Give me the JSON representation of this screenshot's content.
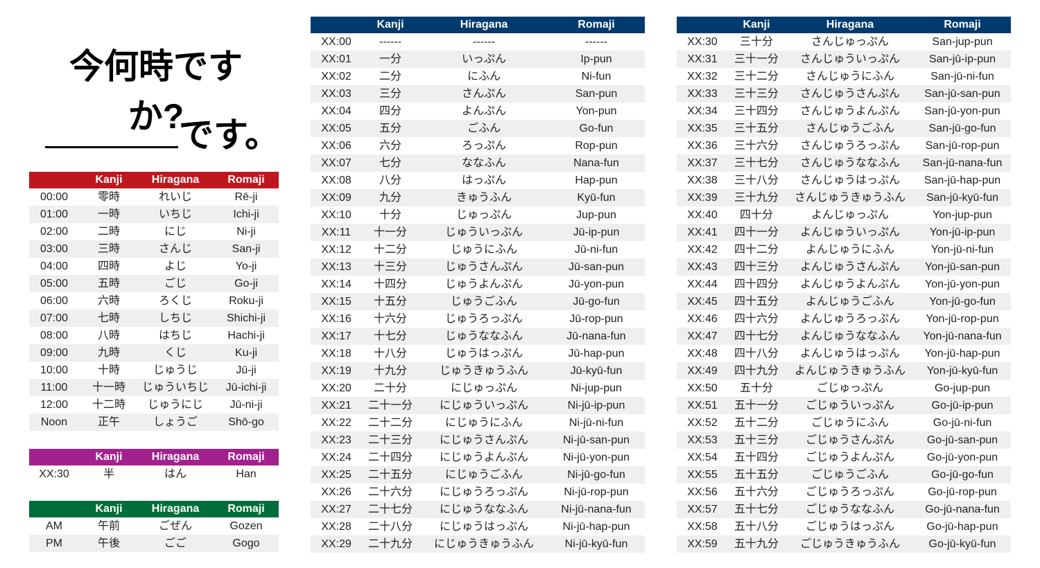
{
  "title": "今何時ですか?",
  "subtitle": "です。",
  "tables": [
    {
      "color": "#c0171f",
      "header": [
        "Kanji",
        "Hiragana",
        "Romaji"
      ],
      "rows": [
        [
          "00:00",
          "零時",
          "れいじ",
          "Rē-ji"
        ],
        [
          "01:00",
          "一時",
          "いちじ",
          "Ichi-ji"
        ],
        [
          "02:00",
          "二時",
          "にじ",
          "Ni-ji"
        ],
        [
          "03:00",
          "三時",
          "さんじ",
          "San-ji"
        ],
        [
          "04:00",
          "四時",
          "よじ",
          "Yo-ji"
        ],
        [
          "05:00",
          "五時",
          "ごじ",
          "Go-ji"
        ],
        [
          "06:00",
          "六時",
          "ろくじ",
          "Roku-ji"
        ],
        [
          "07:00",
          "七時",
          "しちじ",
          "Shichi-ji"
        ],
        [
          "08:00",
          "八時",
          "はちじ",
          "Hachi-ji"
        ],
        [
          "09:00",
          "九時",
          "くじ",
          "Ku-ji"
        ],
        [
          "10:00",
          "十時",
          "じゅうじ",
          "Jū-ji"
        ],
        [
          "11:00",
          "十一時",
          "じゅういちじ",
          "Jū-ichi-ji"
        ],
        [
          "12:00",
          "十二時",
          "じゅうにじ",
          "Jū-ni-ji"
        ],
        [
          "Noon",
          "正午",
          "しょうご",
          "Shō-go"
        ]
      ]
    },
    {
      "color": "#a3218e",
      "header": [
        "Kanji",
        "Hiragana",
        "Romaji"
      ],
      "rows": [
        [
          "XX:30",
          "半",
          "はん",
          "Han"
        ]
      ]
    },
    {
      "color": "#006e3b",
      "header": [
        "Kanji",
        "Hiragana",
        "Romaji"
      ],
      "rows": [
        [
          "AM",
          "午前",
          "ごぜん",
          "Gozen"
        ],
        [
          "PM",
          "午後",
          "ごご",
          "Gogo"
        ]
      ]
    },
    {
      "color": "#003b70",
      "header": [
        "Kanji",
        "Hiragana",
        "Romaji"
      ],
      "rows": [
        [
          "XX:00",
          "------",
          "------",
          "------"
        ],
        [
          "XX:01",
          "一分",
          "いっぷん",
          "Ip-pun"
        ],
        [
          "XX:02",
          "二分",
          "にふん",
          "Ni-fun"
        ],
        [
          "XX:03",
          "三分",
          "さんぷん",
          "San-pun"
        ],
        [
          "XX:04",
          "四分",
          "よんぷん",
          "Yon-pun"
        ],
        [
          "XX:05",
          "五分",
          "ごふん",
          "Go-fun"
        ],
        [
          "XX:06",
          "六分",
          "ろっぷん",
          "Rop-pun"
        ],
        [
          "XX:07",
          "七分",
          "ななふん",
          "Nana-fun"
        ],
        [
          "XX:08",
          "八分",
          "はっぷん",
          "Hap-pun"
        ],
        [
          "XX:09",
          "九分",
          "きゅうふん",
          "Kyū-fun"
        ],
        [
          "XX:10",
          "十分",
          "じゅっぷん",
          "Jup-pun"
        ],
        [
          "XX:11",
          "十一分",
          "じゅういっぷん",
          "Jū-ip-pun"
        ],
        [
          "XX:12",
          "十二分",
          "じゅうにふん",
          "Jū-ni-fun"
        ],
        [
          "XX:13",
          "十三分",
          "じゅうさんぷん",
          "Jū-san-pun"
        ],
        [
          "XX:14",
          "十四分",
          "じゅうよんぷん",
          "Jū-yon-pun"
        ],
        [
          "XX:15",
          "十五分",
          "じゅうごふん",
          "Jū-go-fun"
        ],
        [
          "XX:16",
          "十六分",
          "じゅうろっぷん",
          "Jū-rop-pun"
        ],
        [
          "XX:17",
          "十七分",
          "じゅうななふん",
          "Jū-nana-fun"
        ],
        [
          "XX:18",
          "十八分",
          "じゅうはっぷん",
          "Jū-hap-pun"
        ],
        [
          "XX:19",
          "十九分",
          "じゅうきゅうふん",
          "Jū-kyū-fun"
        ],
        [
          "XX:20",
          "二十分",
          "にじゅっぷん",
          "Ni-jup-pun"
        ],
        [
          "XX:21",
          "二十一分",
          "にじゅういっぷん",
          "Ni-jū-ip-pun"
        ],
        [
          "XX:22",
          "二十二分",
          "にじゅうにふん",
          "Ni-jū-ni-fun"
        ],
        [
          "XX:23",
          "二十三分",
          "にじゅうさんぷん",
          "Ni-jū-san-pun"
        ],
        [
          "XX:24",
          "二十四分",
          "にじゅうよんぷん",
          "Ni-jū-yon-pun"
        ],
        [
          "XX:25",
          "二十五分",
          "にじゅうごふん",
          "Ni-jū-go-fun"
        ],
        [
          "XX:26",
          "二十六分",
          "にじゅうろっぷん",
          "Ni-jū-rop-pun"
        ],
        [
          "XX:27",
          "二十七分",
          "にじゅうななふん",
          "Ni-jū-nana-fun"
        ],
        [
          "XX:28",
          "二十八分",
          "にじゅうはっぷん",
          "Ni-jū-hap-pun"
        ],
        [
          "XX:29",
          "二十九分",
          "にじゅうきゅうふん",
          "Ni-jū-kyū-fun"
        ]
      ]
    },
    {
      "color": "#003b70",
      "header": [
        "Kanji",
        "Hiragana",
        "Romaji"
      ],
      "rows": [
        [
          "XX:30",
          "三十分",
          "さんじゅっぷん",
          "San-jup-pun"
        ],
        [
          "XX:31",
          "三十一分",
          "さんじゅういっぷん",
          "San-jū-ip-pun"
        ],
        [
          "XX:32",
          "三十二分",
          "さんじゅうにふん",
          "San-jū-ni-fun"
        ],
        [
          "XX:33",
          "三十三分",
          "さんじゅうさんぷん",
          "San-jū-san-pun"
        ],
        [
          "XX:34",
          "三十四分",
          "さんじゅうよんぷん",
          "San-jū-yon-pun"
        ],
        [
          "XX:35",
          "三十五分",
          "さんじゅうごふん",
          "San-jū-go-fun"
        ],
        [
          "XX:36",
          "三十六分",
          "さんじゅうろっぷん",
          "San-jū-rop-pun"
        ],
        [
          "XX:37",
          "三十七分",
          "さんじゅうななふん",
          "San-jū-nana-fun"
        ],
        [
          "XX:38",
          "三十八分",
          "さんじゅうはっぷん",
          "San-jū-hap-pun"
        ],
        [
          "XX:39",
          "三十九分",
          "さんじゅうきゅうふん",
          "San-jū-kyū-fun"
        ],
        [
          "XX:40",
          "四十分",
          "よんじゅっぷん",
          "Yon-jup-pun"
        ],
        [
          "XX:41",
          "四十一分",
          "よんじゅういっぷん",
          "Yon-jū-ip-pun"
        ],
        [
          "XX:42",
          "四十二分",
          "よんじゅうにふん",
          "Yon-jū-ni-fun"
        ],
        [
          "XX:43",
          "四十三分",
          "よんじゅうさんぷん",
          "Yon-jū-san-pun"
        ],
        [
          "XX:44",
          "四十四分",
          "よんじゅうよんぷん",
          "Yon-jū-yon-pun"
        ],
        [
          "XX:45",
          "四十五分",
          "よんじゅうごふん",
          "Yon-jū-go-fun"
        ],
        [
          "XX:46",
          "四十六分",
          "よんじゅうろっぷん",
          "Yon-jū-rop-pun"
        ],
        [
          "XX:47",
          "四十七分",
          "よんじゅうななふん",
          "Yon-jū-nana-fun"
        ],
        [
          "XX:48",
          "四十八分",
          "よんじゅうはっぷん",
          "Yon-jū-hap-pun"
        ],
        [
          "XX:49",
          "四十九分",
          "よんじゅうきゅうふん",
          "Yon-jū-kyū-fun"
        ],
        [
          "XX:50",
          "五十分",
          "ごじゅっぷん",
          "Go-jup-pun"
        ],
        [
          "XX:51",
          "五十一分",
          "ごじゅういっぷん",
          "Go-jū-ip-pun"
        ],
        [
          "XX:52",
          "五十二分",
          "ごじゅうにふん",
          "Go-jū-ni-fun"
        ],
        [
          "XX:53",
          "五十三分",
          "ごじゅうさんぷん",
          "Go-jū-san-pun"
        ],
        [
          "XX:54",
          "五十四分",
          "ごじゅうよんぷん",
          "Go-jū-yon-pun"
        ],
        [
          "XX:55",
          "五十五分",
          "ごじゅうごふん",
          "Go-jū-go-fun"
        ],
        [
          "XX:56",
          "五十六分",
          "ごじゅうろっぷん",
          "Go-jū-rop-pun"
        ],
        [
          "XX:57",
          "五十七分",
          "ごじゅうななふん",
          "Go-jū-nana-fun"
        ],
        [
          "XX:58",
          "五十八分",
          "ごじゅうはっぷん",
          "Go-jū-hap-pun"
        ],
        [
          "XX:59",
          "五十九分",
          "ごじゅうきゅうふん",
          "Go-jū-kyū-fun"
        ]
      ]
    }
  ]
}
